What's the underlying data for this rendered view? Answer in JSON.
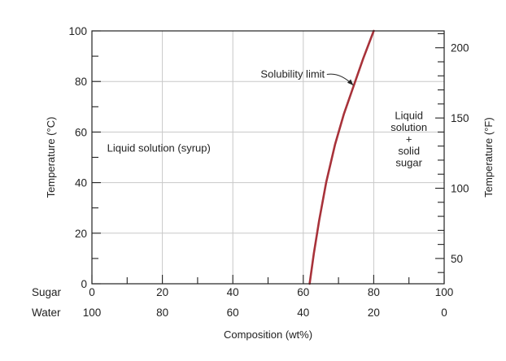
{
  "chart_data": {
    "type": "line",
    "title": "",
    "xlabel": "Composition (wt%)",
    "ylabel_left": "Temperature (°C)",
    "ylabel_right": "Temperature (°F)",
    "xlim": [
      0,
      100
    ],
    "ylim": [
      0,
      100
    ],
    "grid": true,
    "x_ticks_sugar": [
      0,
      20,
      40,
      60,
      80,
      100
    ],
    "x_ticks_water": [
      100,
      80,
      60,
      40,
      20,
      0
    ],
    "x_row_label_sugar": "Sugar",
    "x_row_label_water": "Water",
    "y_ticks_left": [
      0,
      20,
      40,
      60,
      80,
      100
    ],
    "y_ticks_right_f": [
      50,
      100,
      150,
      200
    ],
    "right_axis_ylim_f": [
      32,
      212
    ],
    "series": [
      {
        "name": "Solubility limit",
        "color": "#a8323a",
        "x": [
          61.8,
          63,
          64.5,
          66.5,
          69,
          71.5,
          74,
          77,
          80
        ],
        "y": [
          0,
          12,
          25,
          40,
          55,
          67,
          77,
          89,
          100
        ]
      }
    ],
    "annotations": [
      {
        "id": "solubility",
        "text": "Solubility limit",
        "x": 57,
        "y": 81.5,
        "arrow_to": [
          74.2,
          78.5
        ]
      },
      {
        "id": "liquid",
        "lines": [
          "Liquid solution (syrup)"
        ],
        "x": 19,
        "y": 53.5
      },
      {
        "id": "mixture",
        "lines": [
          "Liquid",
          "solution",
          "+",
          "solid",
          "sugar"
        ],
        "x": 90,
        "y": 57
      }
    ]
  }
}
